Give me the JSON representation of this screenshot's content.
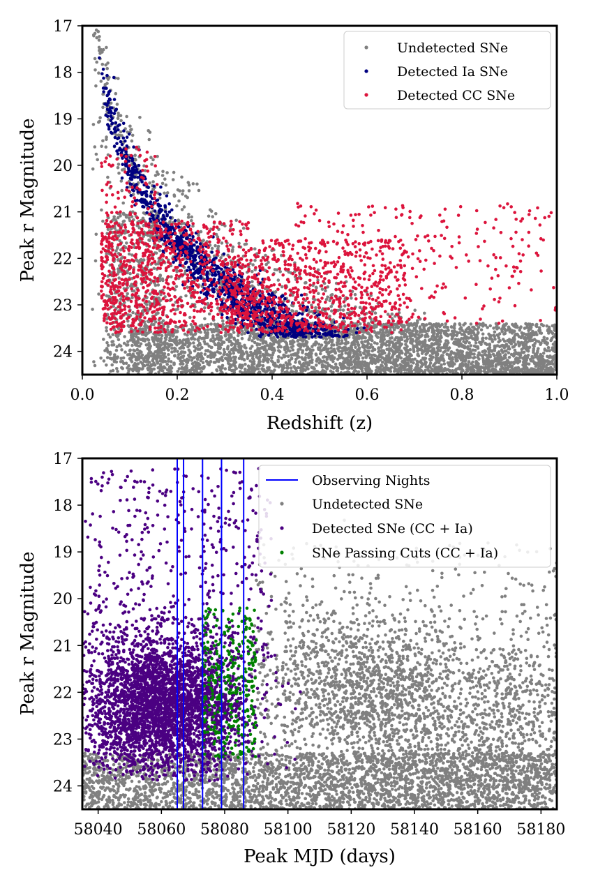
{
  "chart_data": [
    {
      "type": "scatter",
      "title": "",
      "xlabel": "Redshift (z)",
      "ylabel": "Peak r Magnitude",
      "xlim": [
        0.0,
        1.0
      ],
      "ylim": [
        24.5,
        17.0
      ],
      "y_inverted": true,
      "xticks": [
        0.0,
        0.2,
        0.4,
        0.6,
        0.8,
        1.0
      ],
      "xtick_labels": [
        "0.0",
        "0.2",
        "0.4",
        "0.6",
        "0.8",
        "1.0"
      ],
      "yticks": [
        17,
        18,
        19,
        20,
        21,
        22,
        23,
        24
      ],
      "ytick_labels": [
        "17",
        "18",
        "19",
        "20",
        "21",
        "22",
        "23",
        "24"
      ],
      "legend_position": "top-right",
      "series": [
        {
          "name": "Undetected SNe",
          "color": "#808080"
        },
        {
          "name": "Detected Ia SNe",
          "color": "#000080"
        },
        {
          "name": "Detected CC SNe",
          "color": "#dc143c"
        }
      ]
    },
    {
      "type": "scatter",
      "title": "",
      "xlabel": "Peak MJD (days)",
      "ylabel": "Peak r Magnitude",
      "xlim": [
        58035,
        58185
      ],
      "ylim": [
        24.5,
        17.0
      ],
      "y_inverted": true,
      "xticks": [
        58040,
        58060,
        58080,
        58100,
        58120,
        58140,
        58160,
        58180
      ],
      "xtick_labels": [
        "58040",
        "58060",
        "58080",
        "58100",
        "58120",
        "58140",
        "58160",
        "58180"
      ],
      "yticks": [
        17,
        18,
        19,
        20,
        21,
        22,
        23,
        24
      ],
      "ytick_labels": [
        "17",
        "18",
        "19",
        "20",
        "21",
        "22",
        "23",
        "24"
      ],
      "observing_nights": [
        58065,
        58067,
        58073,
        58079,
        58086
      ],
      "legend_position": "top-right",
      "series": [
        {
          "name": "Observing Nights",
          "color": "#0000ff",
          "kind": "vline"
        },
        {
          "name": "Undetected SNe",
          "color": "#808080"
        },
        {
          "name": "Detected SNe (CC + Ia)",
          "color": "#4b0082"
        },
        {
          "name": "SNe Passing Cuts (CC + Ia)",
          "color": "#008000"
        }
      ]
    }
  ]
}
